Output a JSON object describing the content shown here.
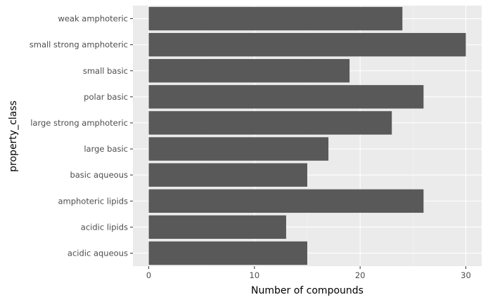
{
  "chart_data": {
    "type": "bar",
    "orientation": "horizontal",
    "categories": [
      "acidic aqueous",
      "acidic lipids",
      "amphoteric lipids",
      "basic aqueous",
      "large basic",
      "large strong amphoteric",
      "polar basic",
      "small basic",
      "small strong amphoteric",
      "weak amphoteric"
    ],
    "values": [
      15,
      13,
      26,
      15,
      17,
      23,
      26,
      19,
      30,
      24
    ],
    "xlabel": "Number of compounds",
    "ylabel": "property_class",
    "xlim": [
      -1.5,
      31.5
    ],
    "xticks": [
      0,
      10,
      20,
      30
    ],
    "xtick_labels": [
      "0",
      "10",
      "20",
      "30"
    ],
    "grid": true,
    "bar_color": "#595959",
    "panel_color": "#ebebeb"
  }
}
